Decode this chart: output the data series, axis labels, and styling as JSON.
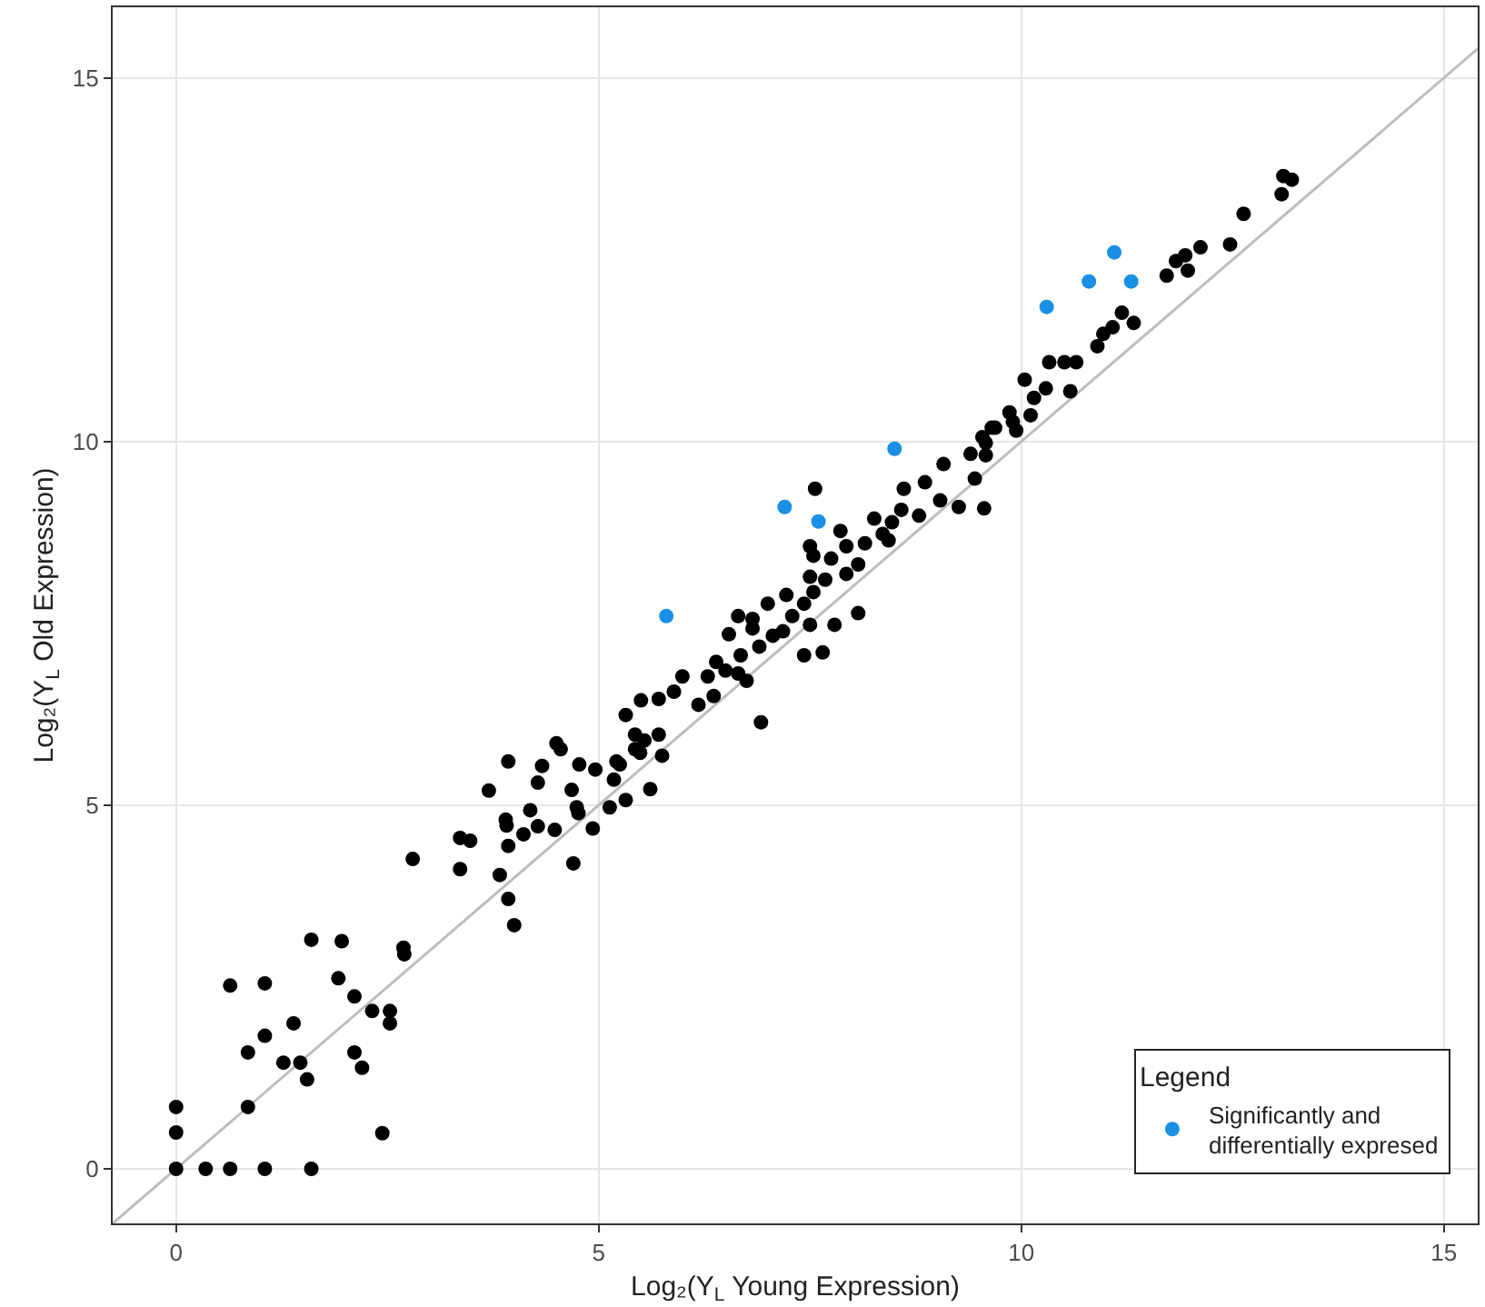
{
  "chart_data": {
    "type": "scatter",
    "xlabel": "Log₂(Y$_{L}$ Young Expression)",
    "ylabel": "Log₂(Y$_{L}$ Old Expression)",
    "legend_title": "Legend",
    "legend": "bottom right",
    "grid": true,
    "marker": "circle",
    "xlim": [
      -0.75,
      15.4
    ],
    "ylim": [
      -0.75,
      15.97
    ],
    "xticks": [
      0,
      5,
      10,
      15
    ],
    "yticks": [
      0,
      5,
      10,
      15
    ],
    "series": [
      {
        "type": "line",
        "color": "#bdbdbd",
        "line_style": "solid",
        "marker": "none",
        "x": [
          -0.75,
          15.4
        ],
        "values": [
          -0.75,
          15.4
        ]
      },
      {
        "color": "#000000",
        "x": [
          0,
          0.35,
          0.64,
          1.05,
          1.6,
          0,
          0,
          0.85,
          0.64,
          1.05,
          1.05,
          0.85,
          1.39,
          1.27,
          1.47,
          1.55,
          1.6,
          1.96,
          1.92,
          2.11,
          2.11,
          2.2,
          2.32,
          2.53,
          2.53,
          2.44,
          2.69,
          2.7,
          2.8,
          3.36,
          3.36,
          3.48,
          3.7,
          3.83,
          3.93,
          4.0,
          3.91,
          3.9,
          3.93,
          4.11,
          4.19,
          4.28,
          4.28,
          3.93,
          4.33,
          4.5,
          4.55,
          4.48,
          4.7,
          4.68,
          4.74,
          4.76,
          4.77,
          4.93,
          4.96,
          5.13,
          5.18,
          5.25,
          5.32,
          5.43,
          5.49,
          5.61,
          5.21,
          5.43,
          5.54,
          5.71,
          5.75,
          5.32,
          5.5,
          5.71,
          5.89,
          5.99,
          6.18,
          6.36,
          6.29,
          6.39,
          6.5,
          6.65,
          6.75,
          6.68,
          6.92,
          6.54,
          6.65,
          6.82,
          6.82,
          7.0,
          6.9,
          7.06,
          7.18,
          7.22,
          7.29,
          7.43,
          7.65,
          7.5,
          7.43,
          7.54,
          7.5,
          7.68,
          7.54,
          7.5,
          7.56,
          7.79,
          8.07,
          7.75,
          7.86,
          7.93,
          8.07,
          7.93,
          8.15,
          8.26,
          8.36,
          8.47,
          8.43,
          8.58,
          8.61,
          8.79,
          8.86,
          9.08,
          9.04,
          9.26,
          9.45,
          9.56,
          9.4,
          9.58,
          9.69,
          9.9,
          9.58,
          9.54,
          9.65,
          9.86,
          9.94,
          10.11,
          10.15,
          10.04,
          10.29,
          10.33,
          10.51,
          10.65,
          10.58,
          10.9,
          10.97,
          11.08,
          11.19,
          11.33,
          11.72,
          11.83,
          11.94,
          11.97,
          12.12,
          12.47,
          12.63,
          13.08,
          13.1,
          13.2
        ],
        "values": [
          0,
          0,
          0,
          0,
          0,
          0.5,
          0.85,
          0.85,
          2.52,
          2.55,
          1.83,
          1.6,
          2.0,
          1.46,
          1.46,
          1.23,
          3.15,
          3.13,
          2.62,
          2.37,
          1.6,
          1.39,
          2.17,
          2.17,
          2.0,
          0.49,
          3.04,
          2.95,
          4.26,
          4.12,
          4.55,
          4.51,
          5.2,
          4.04,
          3.71,
          3.35,
          4.72,
          4.8,
          4.44,
          4.6,
          4.93,
          4.71,
          5.31,
          5.6,
          5.54,
          5.85,
          5.77,
          4.66,
          4.2,
          5.21,
          4.97,
          4.89,
          5.56,
          4.68,
          5.49,
          4.97,
          5.35,
          5.56,
          5.07,
          5.97,
          5.72,
          5.22,
          5.6,
          5.77,
          5.89,
          5.97,
          5.68,
          6.24,
          6.44,
          6.46,
          6.56,
          6.77,
          6.38,
          6.5,
          6.77,
          6.97,
          6.85,
          6.81,
          6.71,
          7.06,
          6.14,
          7.35,
          7.6,
          7.56,
          7.43,
          7.77,
          7.18,
          7.33,
          7.39,
          7.89,
          7.6,
          7.06,
          7.1,
          7.48,
          7.77,
          7.93,
          8.14,
          8.1,
          8.43,
          8.56,
          9.35,
          7.48,
          7.64,
          8.39,
          8.77,
          8.18,
          8.31,
          8.56,
          8.6,
          8.94,
          8.73,
          8.89,
          8.64,
          9.06,
          9.35,
          8.98,
          9.44,
          9.69,
          9.19,
          9.1,
          9.49,
          9.08,
          9.83,
          9.98,
          10.19,
          10.27,
          9.81,
          10.06,
          10.19,
          10.4,
          10.15,
          10.36,
          10.6,
          10.85,
          10.73,
          11.09,
          11.09,
          11.09,
          10.69,
          11.31,
          11.48,
          11.57,
          11.77,
          11.63,
          12.28,
          12.48,
          12.56,
          12.35,
          12.67,
          12.71,
          13.13,
          13.4,
          13.65,
          13.6
        ]
      },
      {
        "name": "Significantly and\ndifferentially expresed",
        "color": "#1a8fe3",
        "x": [
          5.8,
          7.2,
          7.6,
          8.5,
          10.3,
          10.8,
          11.3,
          11.1
        ],
        "values": [
          7.6,
          9.1,
          8.9,
          9.9,
          11.85,
          12.2,
          12.2,
          12.6
        ]
      }
    ]
  }
}
